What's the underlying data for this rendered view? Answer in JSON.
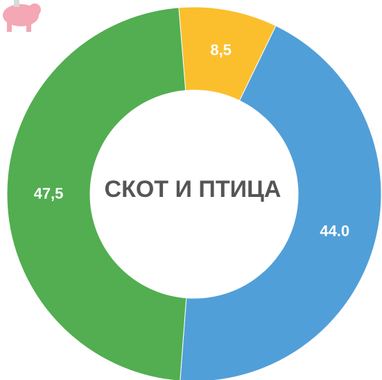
{
  "chart_data": {
    "type": "pie",
    "title": "СКОТ И ПТИЦА",
    "categories": [
      null,
      null,
      null
    ],
    "values": [
      8.5,
      44.0,
      47.5
    ],
    "value_labels": [
      "8,5",
      "44.0",
      "47,5"
    ],
    "colors": [
      "#fbbf2e",
      "#519fd8",
      "#52ae50"
    ],
    "donut": true
  }
}
